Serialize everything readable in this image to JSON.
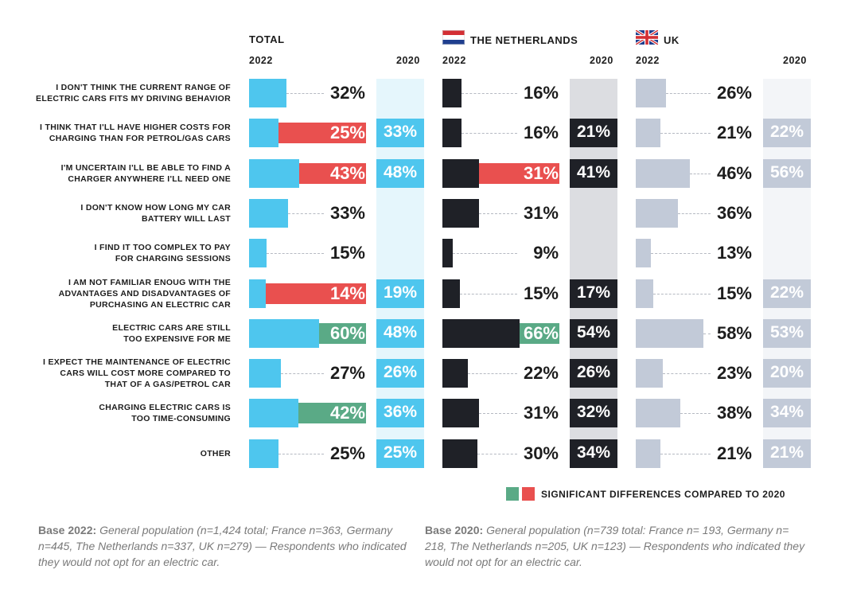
{
  "colors": {
    "total_bar": "#4ec6ee",
    "total_band": "#e5f6fc",
    "nl_bar": "#1f2127",
    "nl_band": "#dcdde1",
    "uk_bar": "#c2cad8",
    "uk_band": "#f3f5f8",
    "sig_up": "#5aaa86",
    "sig_down": "#e9504f",
    "dash": "#b5b9c2"
  },
  "chart_data": {
    "type": "bar",
    "categories": [
      "I DON'T THINK THE CURRENT RANGE OF\nELECTRIC CARS FITS MY DRIVING BEHAVIOR",
      "I THINK THAT I'LL HAVE HIGHER COSTS FOR\nCHARGING THAN FOR PETROL/GAS CARS",
      "I'M UNCERTAIN I'LL BE ABLE TO FIND A\nCHARGER ANYWHERE I'LL NEED ONE",
      "I DON'T KNOW HOW LONG MY CAR\nBATTERY WILL LAST",
      "I FIND IT TOO COMPLEX TO PAY\nFOR CHARGING SESSIONS",
      "I AM NOT FAMILIAR ENOUG WITH THE\nADVANTAGES AND DISADVANTAGES OF\nPURCHASING AN ELECTRIC CAR",
      "ELECTRIC CARS ARE STILL\nTOO EXPENSIVE FOR ME",
      "I EXPECT THE MAINTENANCE OF ELECTRIC\nCARS WILL COST MORE COMPARED TO\nTHAT OF A GAS/PETROL CAR",
      "CHARGING ELECTRIC CARS IS\nTOO TIME-CONSUMING",
      "OTHER"
    ],
    "groups": [
      {
        "key": "total",
        "title": "TOTAL",
        "year_2022": "2022",
        "year_2020": "2020",
        "series": [
          {
            "name": "2022",
            "values": [
              32,
              25,
              43,
              33,
              15,
              14,
              60,
              27,
              42,
              25
            ]
          },
          {
            "name": "2020",
            "values": [
              null,
              33,
              48,
              null,
              null,
              19,
              48,
              26,
              36,
              25
            ]
          }
        ],
        "significance": [
          "",
          "down",
          "down",
          "",
          "",
          "down",
          "up",
          "",
          "up",
          ""
        ]
      },
      {
        "key": "nl",
        "title": "THE NETHERLANDS",
        "year_2022": "2022",
        "year_2020": "2020",
        "series": [
          {
            "name": "2022",
            "values": [
              16,
              16,
              31,
              31,
              9,
              15,
              66,
              22,
              31,
              30
            ]
          },
          {
            "name": "2020",
            "values": [
              null,
              21,
              41,
              null,
              null,
              17,
              54,
              26,
              32,
              34
            ]
          }
        ],
        "significance": [
          "",
          "",
          "down",
          "",
          "",
          "",
          "up",
          "",
          "",
          ""
        ]
      },
      {
        "key": "uk",
        "title": "UK",
        "year_2022": "2022",
        "year_2020": "2020",
        "series": [
          {
            "name": "2022",
            "values": [
              26,
              21,
              46,
              36,
              13,
              15,
              58,
              23,
              38,
              21
            ]
          },
          {
            "name": "2020",
            "values": [
              null,
              22,
              56,
              null,
              null,
              22,
              53,
              20,
              34,
              21
            ]
          }
        ],
        "significance": [
          "",
          "",
          "",
          "",
          "",
          "",
          "",
          "",
          "",
          ""
        ]
      }
    ],
    "unit": "%",
    "ylim": [
      0,
      100
    ]
  },
  "legend": {
    "text": "SIGNIFICANT DIFFERENCES COMPARED TO 2020"
  },
  "notes": {
    "base_2022_label": "Base 2022:",
    "base_2022_text": "General population (n=1,424 total; France n=363, Germany n=445, The Netherlands n=337, UK n=279)  — Respondents who indicated they would not opt for an electric car.",
    "base_2020_label": "Base 2020:",
    "base_2020_text": "General population (n=739 total: France n= 193, Germany n= 218, The Netherlands n=205, UK n=123) — Respondents who indicated they would not opt for an electric car."
  }
}
